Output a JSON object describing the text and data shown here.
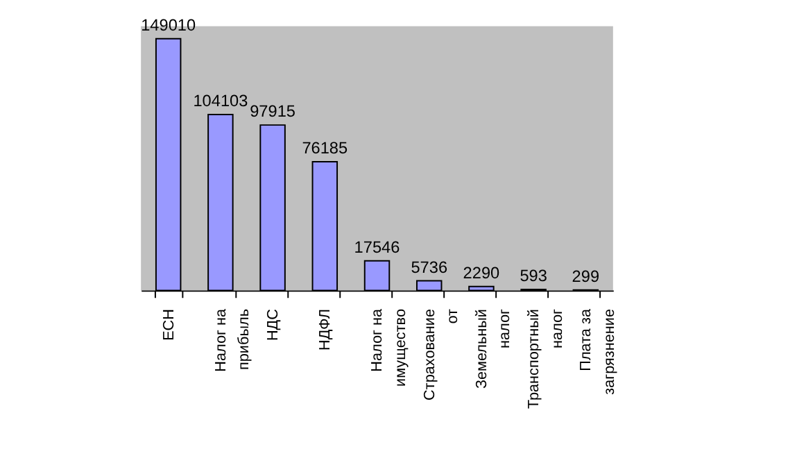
{
  "chart_data": {
    "type": "bar",
    "categories": [
      "ЕСН",
      "Налог на\nприбыль",
      "НДС",
      "НДФЛ",
      "Налог на\nимущество",
      "Страхование\nот",
      "Земельный\nналог",
      "Транспортный\nналог",
      "Плата за\nзагрязнение"
    ],
    "values": [
      149010,
      104103,
      97915,
      76185,
      17546,
      5736,
      2290,
      593,
      299
    ],
    "color": "#9999ff",
    "data_labels": true,
    "grid": false
  }
}
